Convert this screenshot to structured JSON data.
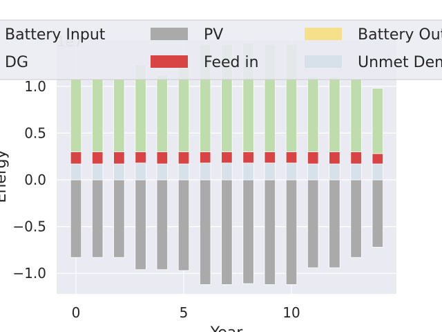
{
  "chart_data": {
    "type": "bar",
    "stacked": true,
    "x": [
      0,
      1,
      2,
      3,
      4,
      5,
      6,
      7,
      8,
      9,
      10,
      11,
      12,
      13,
      14
    ],
    "xlabel": "Year",
    "ylabel": "Energy",
    "scale_offset": "1e7",
    "xticks": [
      0,
      5,
      10
    ],
    "yticks": [
      -1.0,
      -0.5,
      0.0,
      0.5,
      1.0
    ],
    "ylim": [
      -1.23,
      1.24
    ],
    "grid": true,
    "legend_position": "top",
    "series": [
      {
        "name": "Battery Input",
        "color": "#aaaaaa",
        "values": [
          -0.83,
          -0.83,
          -0.83,
          -0.96,
          -0.96,
          -0.97,
          -1.12,
          -1.12,
          -1.11,
          -1.12,
          -1.12,
          -0.94,
          -0.94,
          -0.83,
          -0.72
        ]
      },
      {
        "name": "PV",
        "color": "#f5e08c",
        "values": [
          0,
          0,
          0,
          0,
          0,
          0,
          0,
          0,
          0,
          0,
          0,
          0,
          0,
          0,
          0
        ]
      },
      {
        "name": "Feed in",
        "color": "#d7e1ea",
        "values": [
          0.17,
          0.17,
          0.17,
          0.18,
          0.17,
          0.17,
          0.18,
          0.18,
          0.18,
          0.18,
          0.18,
          0.17,
          0.17,
          0.17,
          0.17
        ]
      },
      {
        "name": "DG",
        "color": "#d84444",
        "values": [
          0.13,
          0.13,
          0.13,
          0.12,
          0.13,
          0.13,
          0.12,
          0.12,
          0.12,
          0.12,
          0.12,
          0.13,
          0.13,
          0.13,
          0.11
        ]
      },
      {
        "name": "Battery Output",
        "color": "#bfdcac",
        "values": [
          0.78,
          0.78,
          0.78,
          0.93,
          0.82,
          0.92,
          1.15,
          1.15,
          1.16,
          1.15,
          1.15,
          0.8,
          0.8,
          0.78,
          0.7
        ]
      },
      {
        "name": "Unmet Demand",
        "color": "#f2b07e",
        "values": [
          0,
          0,
          0,
          0,
          0,
          0,
          0,
          0,
          0,
          0,
          0,
          0,
          0,
          0,
          0
        ]
      }
    ]
  },
  "legend": {
    "items": [
      {
        "label": "Battery Input",
        "color": "#aaaaaa"
      },
      {
        "label": "PV",
        "color": "#f5e08c"
      },
      {
        "label": "Battery Output",
        "color": "#bfdcac"
      },
      {
        "label": "DG",
        "color": "#d84444"
      },
      {
        "label": "Feed in",
        "color": "#d7e1ea"
      },
      {
        "label": "Unmet Demand",
        "color": "#f2b07e"
      }
    ]
  }
}
